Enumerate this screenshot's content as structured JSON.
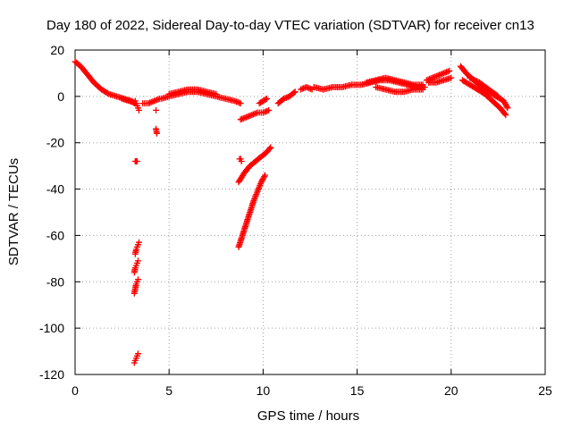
{
  "chart_data": {
    "type": "scatter",
    "title": "Day 180 of 2022, Sidereal Day-to-day VTEC variation (SDTVAR) for receiver cn13",
    "xlabel": "GPS time / hours",
    "ylabel": "SDTVAR / TECUs",
    "xlim": [
      0,
      25
    ],
    "ylim": [
      -120,
      20
    ],
    "xticks": [
      0,
      5,
      10,
      15,
      20,
      25
    ],
    "yticks": [
      -120,
      -100,
      -80,
      -60,
      -40,
      -20,
      0,
      20
    ],
    "grid": true,
    "marker": "+",
    "series": [
      {
        "name": "SDTVAR",
        "color": "#ff0000",
        "segments": [
          {
            "x": [
              0.0,
              0.3,
              0.6,
              1.0,
              1.4,
              1.8,
              2.2,
              2.6,
              3.0,
              3.2
            ],
            "y": [
              15,
              13,
              10,
              6,
              3,
              1,
              0,
              -1,
              -2,
              -3
            ]
          },
          {
            "x": [
              2.5,
              2.9,
              3.2
            ],
            "y": [
              -1,
              -2,
              -3
            ]
          },
          {
            "x": [
              3.2,
              3.25,
              3.3,
              3.35,
              3.4
            ],
            "y": [
              -2,
              -3,
              -4,
              -5,
              -6
            ]
          },
          {
            "x": [
              3.6,
              3.9,
              4.2,
              4.5
            ],
            "y": [
              -3,
              -3,
              -2,
              -1
            ]
          },
          {
            "x": [
              4.3
            ],
            "y": [
              -6
            ]
          },
          {
            "x": [
              4.3,
              4.35
            ],
            "y": [
              -14,
              -16
            ]
          },
          {
            "x": [
              4.6,
              5.0,
              5.5,
              6.0,
              6.5,
              7.0,
              7.5,
              8.0,
              8.5,
              8.8
            ],
            "y": [
              -1,
              0,
              1,
              2,
              2,
              1,
              0,
              -1,
              -2,
              -3
            ]
          },
          {
            "x": [
              5.0,
              5.5,
              6.0,
              6.5,
              7.0,
              7.5
            ],
            "y": [
              1,
              2,
              3,
              3,
              2,
              1
            ]
          },
          {
            "x": [
              3.2,
              3.25,
              3.3
            ],
            "y": [
              -28,
              -28,
              -28
            ]
          },
          {
            "x": [
              3.2,
              3.25,
              3.3,
              3.35,
              3.4
            ],
            "y": [
              -68,
              -66,
              -65,
              -64,
              -63
            ]
          },
          {
            "x": [
              3.15,
              3.2,
              3.25,
              3.3,
              3.35
            ],
            "y": [
              -76,
              -74,
              -73,
              -72,
              -71
            ]
          },
          {
            "x": [
              3.15,
              3.2,
              3.25,
              3.3,
              3.35
            ],
            "y": [
              -85,
              -83,
              -81,
              -80,
              -79
            ]
          },
          {
            "x": [
              3.15,
              3.2,
              3.25,
              3.3,
              3.35
            ],
            "y": [
              -115,
              -114,
              -113,
              -112,
              -111
            ]
          },
          {
            "x": [
              8.75,
              8.8,
              8.85
            ],
            "y": [
              -27,
              -27,
              -28
            ]
          },
          {
            "x": [
              8.7,
              9.0,
              9.3,
              9.6,
              9.9,
              10.2,
              10.4
            ],
            "y": [
              -37,
              -33,
              -30,
              -28,
              -26,
              -24,
              -22
            ]
          },
          {
            "x": [
              8.7,
              8.9,
              9.1,
              9.3,
              9.5,
              9.7,
              9.9,
              10.1
            ],
            "y": [
              -65,
              -60,
              -55,
              -50,
              -45,
              -41,
              -37,
              -34
            ]
          },
          {
            "x": [
              8.8,
              9.1,
              9.4,
              9.7,
              10.0,
              10.3
            ],
            "y": [
              -10,
              -9,
              -8,
              -7,
              -7,
              -6
            ]
          },
          {
            "x": [
              9.8,
              10.0,
              10.2
            ],
            "y": [
              -3,
              -2,
              -1
            ]
          },
          {
            "x": [
              10.8,
              11.1,
              11.4,
              11.7
            ],
            "y": [
              -3,
              -1,
              0,
              2
            ]
          },
          {
            "x": [
              12.0,
              12.3,
              12.6
            ],
            "y": [
              3,
              4,
              3
            ]
          },
          {
            "x": [
              12.7,
              13.2,
              13.7,
              14.2,
              14.7,
              15.2,
              15.7,
              16.2,
              16.7,
              17.2,
              17.7,
              18.2,
              18.6
            ],
            "y": [
              4,
              3,
              4,
              4,
              5,
              5,
              6,
              7,
              7,
              6,
              5,
              4,
              4
            ]
          },
          {
            "x": [
              15.5,
              16.0,
              16.5,
              17.0,
              17.5,
              18.0,
              18.5
            ],
            "y": [
              6,
              7,
              8,
              7,
              6,
              5,
              5
            ]
          },
          {
            "x": [
              16.0,
              16.5,
              17.0,
              17.5,
              18.0,
              18.5
            ],
            "y": [
              4,
              3,
              2,
              2,
              3,
              3
            ]
          },
          {
            "x": [
              18.7,
              19.0,
              19.3,
              19.6,
              19.9
            ],
            "y": [
              7,
              8,
              9,
              10,
              11
            ]
          },
          {
            "x": [
              18.8,
              19.2,
              19.6,
              20.0
            ],
            "y": [
              6,
              6,
              7,
              8
            ]
          },
          {
            "x": [
              20.5,
              20.8,
              21.2,
              21.6,
              22.0,
              22.4,
              22.8,
              23.0
            ],
            "y": [
              13,
              10,
              7,
              4,
              2,
              0,
              -2,
              -5
            ]
          },
          {
            "x": [
              20.6,
              21.0,
              21.4,
              21.8,
              22.2,
              22.6,
              22.9
            ],
            "y": [
              7,
              5,
              3,
              1,
              -2,
              -5,
              -8
            ]
          },
          {
            "x": [
              21.0,
              21.5,
              22.0,
              22.5
            ],
            "y": [
              8,
              6,
              3,
              0
            ]
          }
        ]
      }
    ]
  }
}
